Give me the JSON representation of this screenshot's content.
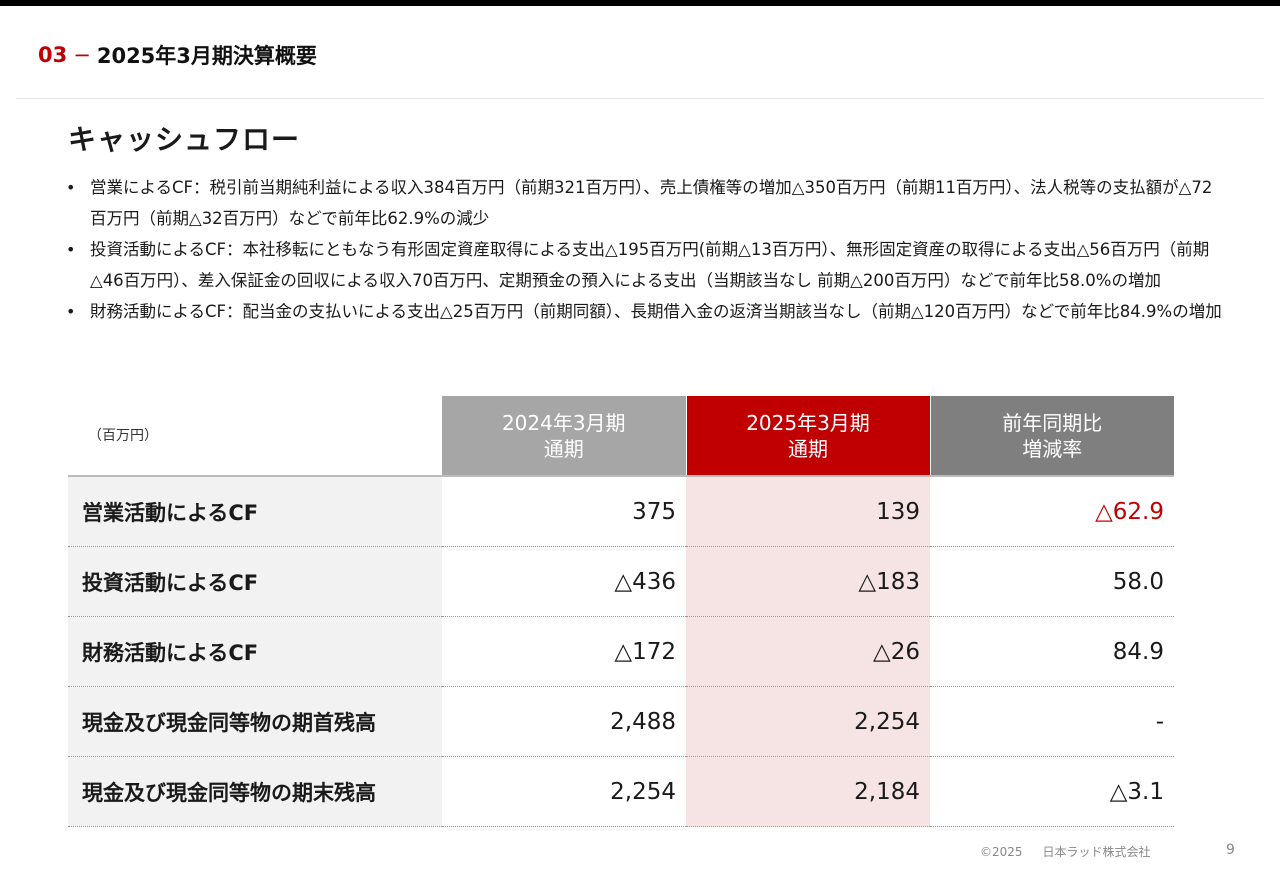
{
  "header": {
    "section_number": "03",
    "dash": "−",
    "section_title": "2025年3月期決算概要"
  },
  "title": "キャッシュフロー",
  "bullets": [
    "営業によるCF：税引前当期純利益による収入384百万円（前期321百万円）、売上債権等の増加△350百万円（前期11百万円）、法人税等の支払額が△72百万円（前期△32百万円）などで前年比62.9%の減少",
    "投資活動によるCF：本社移転にともなう有形固定資産取得による支出△195百万円(前期△13百万円）、無形固定資産の取得による支出△56百万円（前期△46百万円）、差入保証金の回収による収入70百万円、定期預金の預入による支出（当期該当なし 前期△200百万円）などで前年比58.0%の増加",
    "財務活動によるCF：配当金の支払いによる支出△25百万円（前期同額）、長期借入金の返済当期該当なし（前期△120百万円）などで前年比84.9%の増加"
  ],
  "table": {
    "unit": "（百万円）",
    "headers": {
      "prev_line1": "2024年3月期",
      "prev_line2": "通期",
      "cur_line1": "2025年3月期",
      "cur_line2": "通期",
      "yoy_line1": "前年同期比",
      "yoy_line2": "増減率"
    },
    "rows": [
      {
        "label": "営業活動によるCF",
        "prev": "375",
        "cur": "139",
        "yoy": "△62.9"
      },
      {
        "label": "投資活動によるCF",
        "prev": "△436",
        "cur": "△183",
        "yoy": "58.0"
      },
      {
        "label": "財務活動によるCF",
        "prev": "△172",
        "cur": "△26",
        "yoy": "84.9"
      },
      {
        "label": "現金及び現金同等物の期首残高",
        "prev": "2,488",
        "cur": "2,254",
        "yoy": "-"
      },
      {
        "label": "現金及び現金同等物の期末残高",
        "prev": "2,254",
        "cur": "2,184",
        "yoy": "△3.1"
      }
    ]
  },
  "footer": {
    "copyright": "©2025",
    "company": "日本ラッド株式会社",
    "page": "9"
  },
  "colors": {
    "accent": "#c00000",
    "prev_header": "#a6a6a6",
    "yoy_header": "#7f7f7f",
    "current_column": "#f6e3e4"
  }
}
